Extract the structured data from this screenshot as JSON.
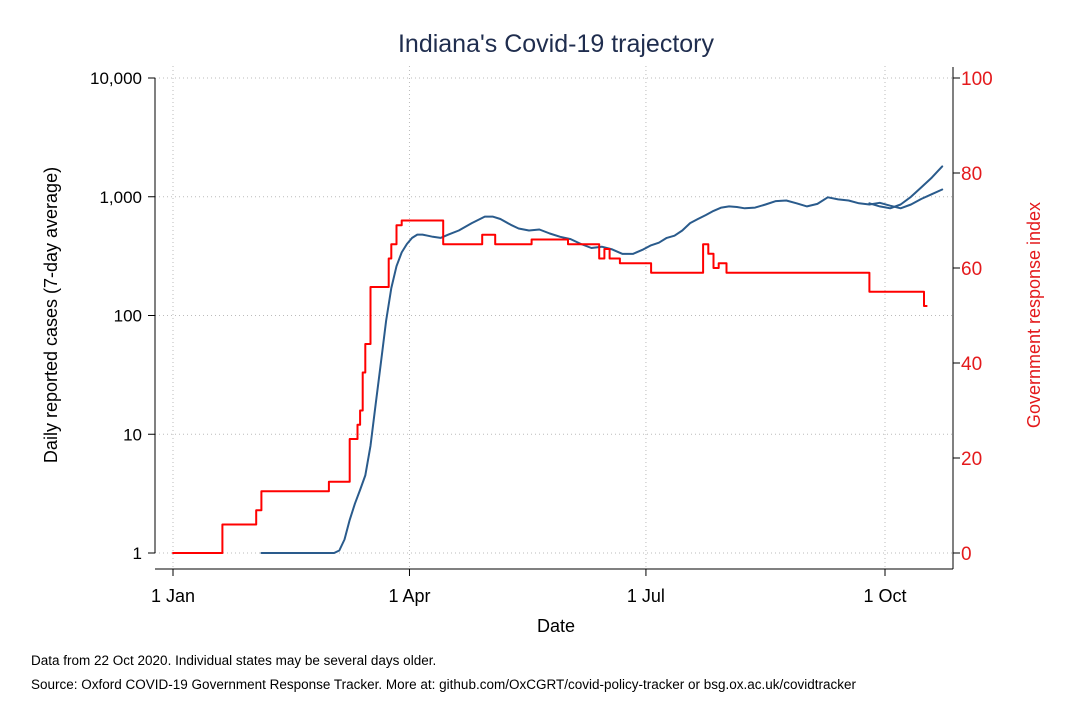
{
  "chart_data": {
    "type": "line",
    "title": "Indiana's Covid-19 trajectory",
    "xlabel": "Date",
    "ylabel_left": "Daily reported cases (7-day average)",
    "ylabel_right": "Government response index",
    "x_ticks": [
      "1 Jan",
      "1 Apr",
      "1 Jul",
      "1 Oct"
    ],
    "x_tick_days": [
      0,
      91,
      182,
      274
    ],
    "xlim_days": [
      0,
      296
    ],
    "left_axis": {
      "scale": "log",
      "ylim": [
        1,
        10000
      ],
      "ticks": [
        1,
        10,
        100,
        1000,
        10000
      ],
      "tick_labels": [
        "1",
        "10",
        "100",
        "1,000",
        "10,000"
      ]
    },
    "right_axis": {
      "scale": "linear",
      "ylim": [
        0,
        100
      ],
      "ticks": [
        0,
        20,
        40,
        60,
        80,
        100
      ],
      "tick_labels": [
        "0",
        "20",
        "40",
        "60",
        "80",
        "100"
      ]
    },
    "grid": true,
    "colors": {
      "cases": "#2a5b8c",
      "index": "#ff0000",
      "axis_right": "#e41a1c",
      "text": "#000000",
      "title": "#1f2d4e",
      "grid": "#bbbbbb"
    },
    "series": [
      {
        "axis": "left",
        "x": [
          34,
          57,
          62,
          64,
          66,
          68,
          70,
          72,
          74,
          76,
          78,
          80,
          82,
          84,
          86,
          88,
          90,
          92,
          94,
          96,
          98,
          100,
          103,
          106,
          110,
          115,
          120,
          123,
          126,
          130,
          133,
          137,
          141,
          145,
          149,
          153,
          157,
          161,
          165,
          169,
          173,
          177,
          181,
          184,
          187,
          190,
          193,
          196,
          199,
          202,
          205,
          208,
          211,
          214,
          217,
          220,
          224,
          228,
          232,
          236,
          240,
          244,
          248,
          252,
          256,
          260,
          264,
          268,
          272,
          276,
          280,
          284,
          288,
          292,
          296
        ],
        "y": [
          1,
          1,
          1,
          1.05,
          1.3,
          1.9,
          2.6,
          3.4,
          4.5,
          8,
          18,
          40,
          90,
          170,
          260,
          340,
          400,
          450,
          480,
          480,
          470,
          460,
          450,
          480,
          520,
          600,
          680,
          680,
          650,
          580,
          540,
          520,
          530,
          490,
          460,
          440,
          400,
          370,
          380,
          360,
          330,
          330,
          360,
          390,
          410,
          450,
          470,
          520,
          600,
          650,
          700,
          760,
          810,
          830,
          820,
          800,
          810,
          860,
          920,
          930,
          880,
          830,
          870,
          990,
          950,
          930,
          880,
          860,
          890,
          840,
          800,
          860,
          960,
          1050,
          1150
        ]
      },
      {
        "axis": "left",
        "x": [
          268,
          272,
          276,
          280,
          284,
          288,
          292,
          296
        ],
        "y": [
          880,
          830,
          800,
          860,
          1000,
          1200,
          1450,
          1800
        ]
      },
      {
        "axis": "right",
        "x": [
          0,
          19,
          19,
          32,
          32,
          34,
          34,
          60,
          60,
          68,
          68,
          71,
          71,
          72,
          72,
          73,
          73,
          74,
          74,
          75,
          75,
          76,
          76,
          78,
          78,
          83,
          83,
          84,
          84,
          86,
          86,
          88,
          88,
          89,
          89,
          91,
          91,
          104,
          104,
          119,
          119,
          124,
          124,
          138,
          138,
          152,
          152,
          164,
          164,
          166,
          166,
          168,
          168,
          172,
          172,
          184,
          184,
          204,
          204,
          206,
          206,
          208,
          208,
          210,
          210,
          211,
          211,
          213,
          213,
          236,
          236,
          268,
          268,
          289,
          289,
          290
        ],
        "y": [
          0,
          0,
          6,
          6,
          9,
          9,
          13,
          13,
          15,
          15,
          24,
          24,
          27,
          27,
          30,
          30,
          38,
          38,
          44,
          44,
          44,
          44,
          56,
          56,
          56,
          56,
          62,
          62,
          65,
          65,
          69,
          69,
          70,
          70,
          70,
          70,
          70,
          70,
          65,
          65,
          67,
          67,
          65,
          65,
          66,
          66,
          65,
          65,
          62,
          62,
          64,
          64,
          62,
          62,
          61,
          61,
          59,
          59,
          65,
          65,
          63,
          63,
          60,
          60,
          61,
          61,
          61,
          61,
          59,
          59,
          59,
          59,
          55,
          55,
          52,
          52
        ]
      }
    ]
  },
  "notes": {
    "line1": "Data from 22 Oct 2020. Individual states may be several days older.",
    "line2": "Source: Oxford COVID-19 Government Response Tracker. More at: github.com/OxCGRT/covid-policy-tracker or bsg.ox.ac.uk/covidtracker"
  }
}
